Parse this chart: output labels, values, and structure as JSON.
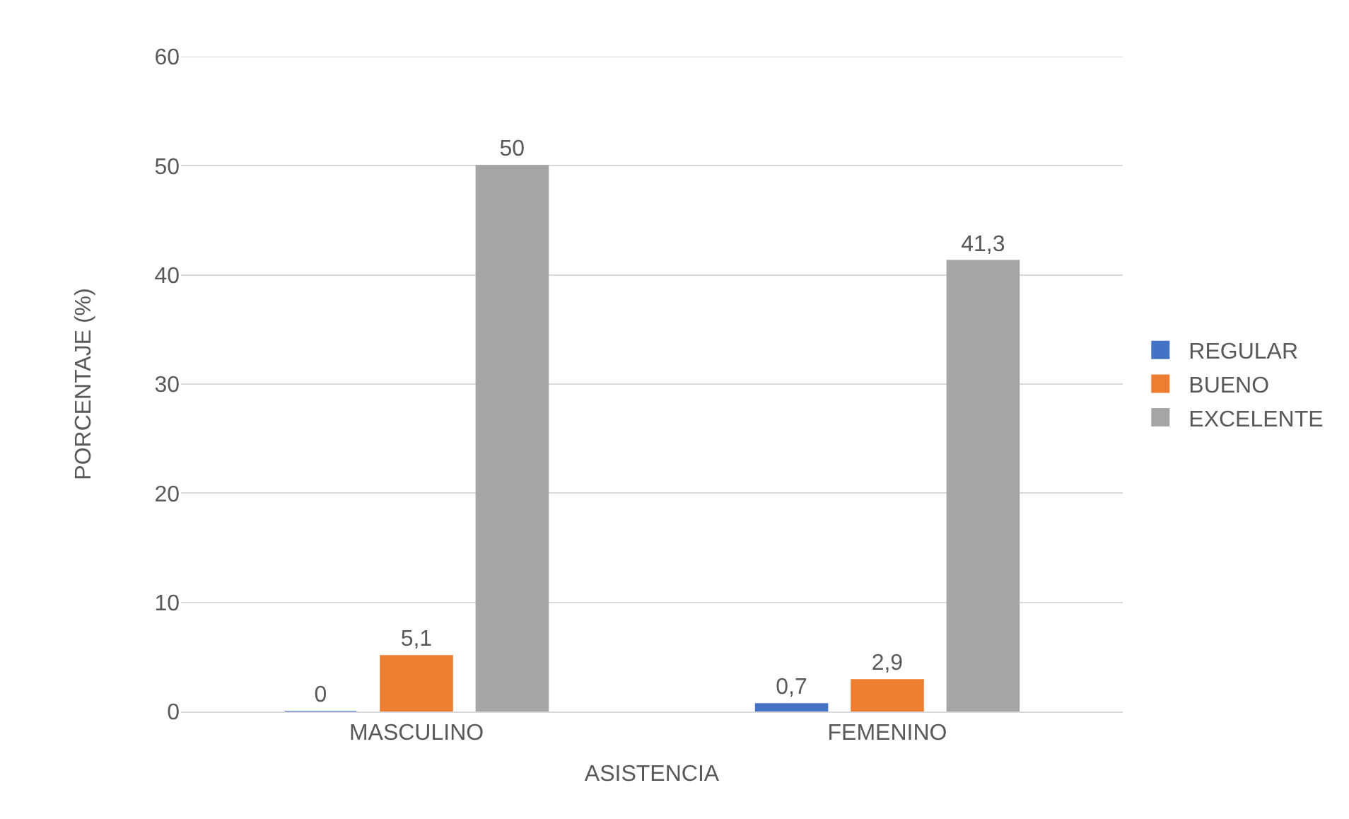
{
  "chart_data": {
    "type": "bar",
    "xlabel": "ASISTENCIA",
    "ylabel": "PORCENTAJE (%)",
    "categories": [
      "MASCULINO",
      "FEMENINO"
    ],
    "series": [
      {
        "name": "REGULAR",
        "color": "#4472c4",
        "values": [
          0,
          0.7
        ],
        "value_labels": [
          "0",
          "0,7"
        ]
      },
      {
        "name": "BUENO",
        "color": "#ed7d31",
        "values": [
          5.1,
          2.9
        ],
        "value_labels": [
          "5,1",
          "2,9"
        ]
      },
      {
        "name": "EXCELENTE",
        "color": "#a5a5a5",
        "values": [
          50,
          41.3
        ],
        "value_labels": [
          "50",
          "41,3"
        ]
      }
    ],
    "ylim": [
      0,
      60
    ],
    "yticks": [
      0,
      10,
      20,
      30,
      40,
      50,
      60
    ],
    "grid": "y",
    "legend": "right"
  }
}
